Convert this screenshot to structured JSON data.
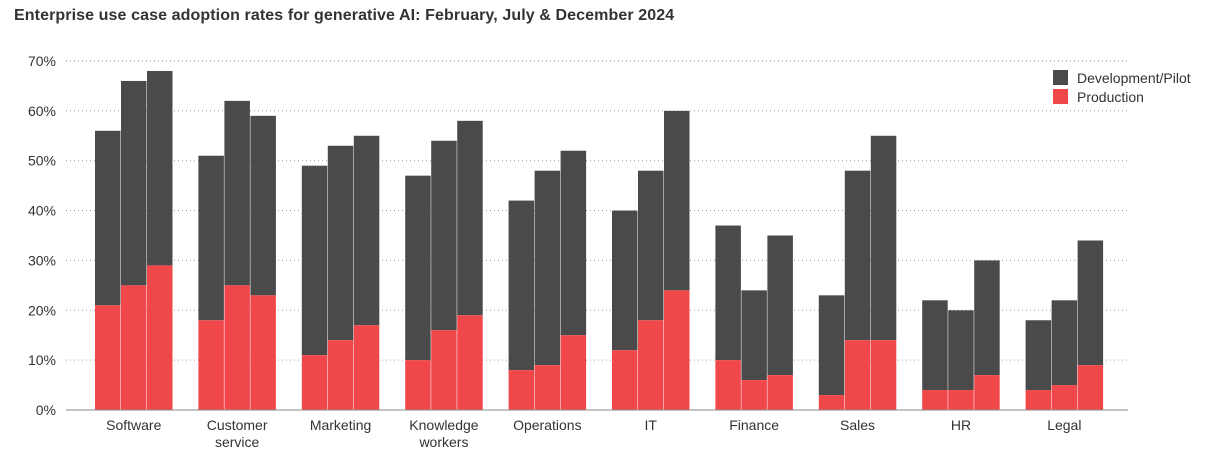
{
  "chart_data": {
    "type": "bar",
    "stacked": true,
    "title": "Enterprise use case adoption rates for generative AI: February, July & December 2024",
    "xlabel": "",
    "ylabel": "",
    "ylim": [
      0,
      70
    ],
    "yticks": [
      "0%",
      "10%",
      "20%",
      "30%",
      "40%",
      "50%",
      "60%",
      "70%"
    ],
    "grid": true,
    "legend_position": "top-right",
    "categories": [
      [
        "Software"
      ],
      [
        "Customer",
        "service"
      ],
      [
        "Marketing"
      ],
      [
        "Knowledge",
        "workers"
      ],
      [
        "Operations"
      ],
      [
        "IT"
      ],
      [
        "Finance"
      ],
      [
        "Sales"
      ],
      [
        "HR"
      ],
      [
        "Legal"
      ]
    ],
    "series": [
      {
        "name": "Production",
        "color": "#f0474a",
        "values": [
          [
            21,
            25,
            29
          ],
          [
            18,
            25,
            23
          ],
          [
            11,
            14,
            17
          ],
          [
            10,
            16,
            19
          ],
          [
            8,
            9,
            15
          ],
          [
            12,
            18,
            24
          ],
          [
            10,
            6,
            7
          ],
          [
            3,
            14,
            14
          ],
          [
            4,
            4,
            7
          ],
          [
            4,
            5,
            9
          ]
        ]
      },
      {
        "name": "Development/Pilot",
        "color": "#4a4a4a",
        "values": [
          [
            35,
            41,
            39
          ],
          [
            33,
            37,
            36
          ],
          [
            38,
            39,
            38
          ],
          [
            37,
            38,
            39
          ],
          [
            34,
            39,
            37
          ],
          [
            28,
            30,
            36
          ],
          [
            27,
            18,
            28
          ],
          [
            20,
            34,
            41
          ],
          [
            18,
            16,
            23
          ],
          [
            14,
            17,
            25
          ]
        ]
      }
    ]
  },
  "legend": {
    "items": [
      {
        "label": "Development/Pilot",
        "color": "#4a4a4a"
      },
      {
        "label": "Production",
        "color": "#f0474a"
      }
    ]
  }
}
